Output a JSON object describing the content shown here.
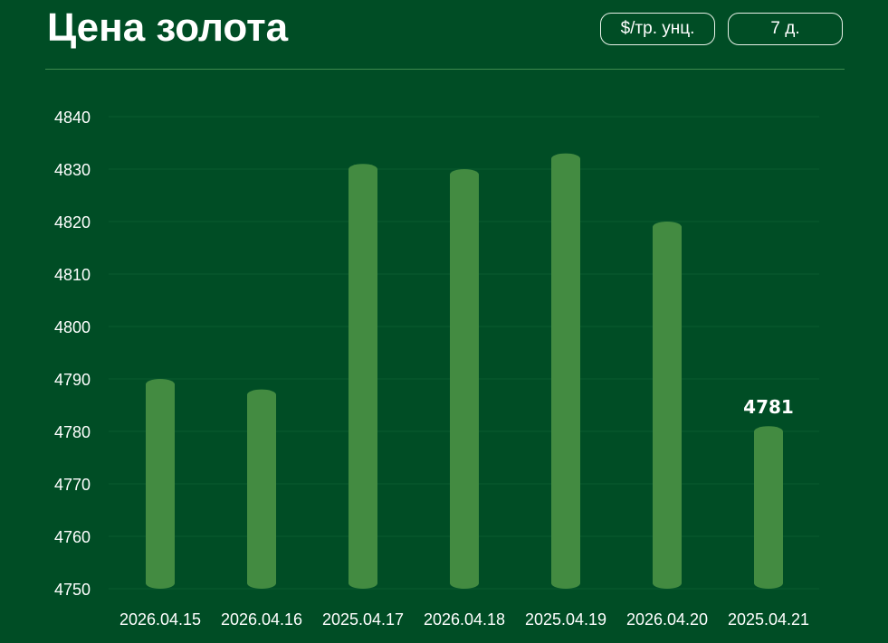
{
  "header": {
    "title": "Цена золота",
    "unit_label": "$/тр. унц.",
    "period_label": "7 д."
  },
  "colors": {
    "background": "#004d25",
    "bar": "#438b41",
    "text": "#ffffff"
  },
  "chart_data": {
    "type": "bar",
    "categories": [
      "2026.04.15",
      "2026.04.16",
      "2025.04.17",
      "2026.04.18",
      "2025.04.19",
      "2026.04.20",
      "2025.04.21"
    ],
    "values": [
      4790,
      4788,
      4831,
      4830,
      4833,
      4820,
      4781
    ],
    "ylim": [
      4750,
      4840
    ],
    "yticks": [
      4750,
      4760,
      4770,
      4780,
      4790,
      4800,
      4810,
      4820,
      4830,
      4840
    ],
    "data_labels": [
      null,
      null,
      null,
      null,
      null,
      null,
      "4781"
    ],
    "grid": true
  }
}
